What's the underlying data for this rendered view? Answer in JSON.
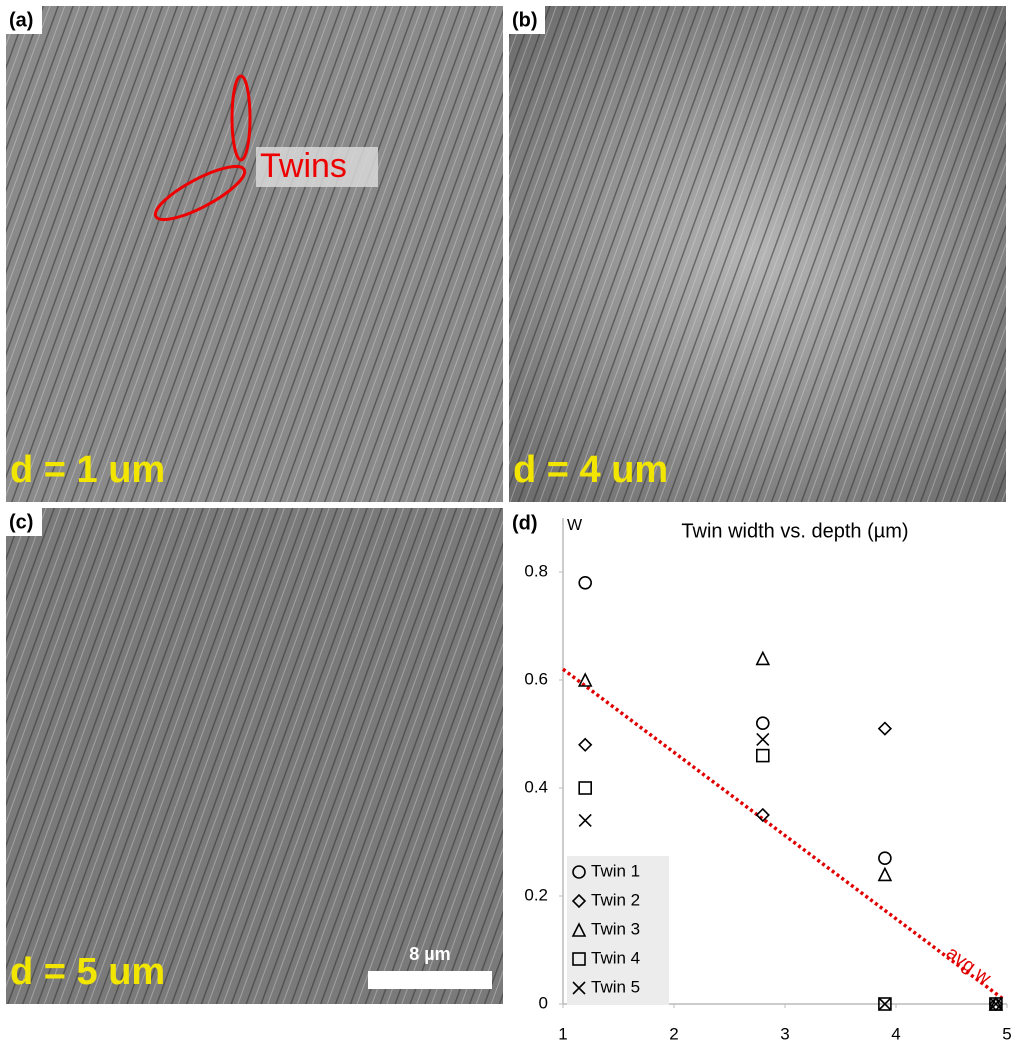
{
  "panels": [
    {
      "label": "(a)",
      "caption": "d = 1 um",
      "annotation": "Twins"
    },
    {
      "label": "(b)",
      "caption": "d = 4 um"
    },
    {
      "label": "(c)",
      "caption": "d = 5 um",
      "scale_bar": "8 µm"
    }
  ],
  "chart_data": {
    "type": "scatter",
    "panel_label": "(d)",
    "title": "Twin width vs. depth (µm)",
    "y_label": "W",
    "xlim": [
      1,
      5
    ],
    "xticks": [
      1,
      2,
      3,
      4,
      5
    ],
    "ylim": [
      0,
      0.9
    ],
    "yticks": [
      0,
      0.2,
      0.4,
      0.6,
      0.8
    ],
    "legend": "bottom-left",
    "series": [
      {
        "name": "Twin 1",
        "marker": "circle",
        "color": "#000000",
        "x": [
          1.2,
          2.8,
          3.9
        ],
        "values": [
          0.78,
          0.52,
          0.27
        ]
      },
      {
        "name": "Twin 2",
        "marker": "diamond",
        "color": "#000000",
        "x": [
          1.2,
          2.8,
          3.9,
          4.9
        ],
        "values": [
          0.48,
          0.35,
          0.51,
          0
        ]
      },
      {
        "name": "Twin 3",
        "marker": "triangle",
        "color": "#000000",
        "x": [
          1.2,
          2.8,
          3.9,
          4.9
        ],
        "values": [
          0.6,
          0.64,
          0.24,
          0
        ]
      },
      {
        "name": "Twin 4",
        "marker": "square",
        "color": "#000000",
        "x": [
          1.2,
          2.8,
          3.9,
          4.9
        ],
        "values": [
          0.4,
          0.46,
          0,
          0
        ]
      },
      {
        "name": "Twin 5",
        "marker": "cross",
        "color": "#000000",
        "x": [
          1.2,
          2.8,
          3.9,
          4.9
        ],
        "values": [
          0.34,
          0.49,
          0,
          0
        ]
      }
    ],
    "trendline": {
      "label": "avg w",
      "color": "#e00000",
      "x": [
        1,
        4.96
      ],
      "values": [
        0.62,
        0.01
      ]
    }
  }
}
